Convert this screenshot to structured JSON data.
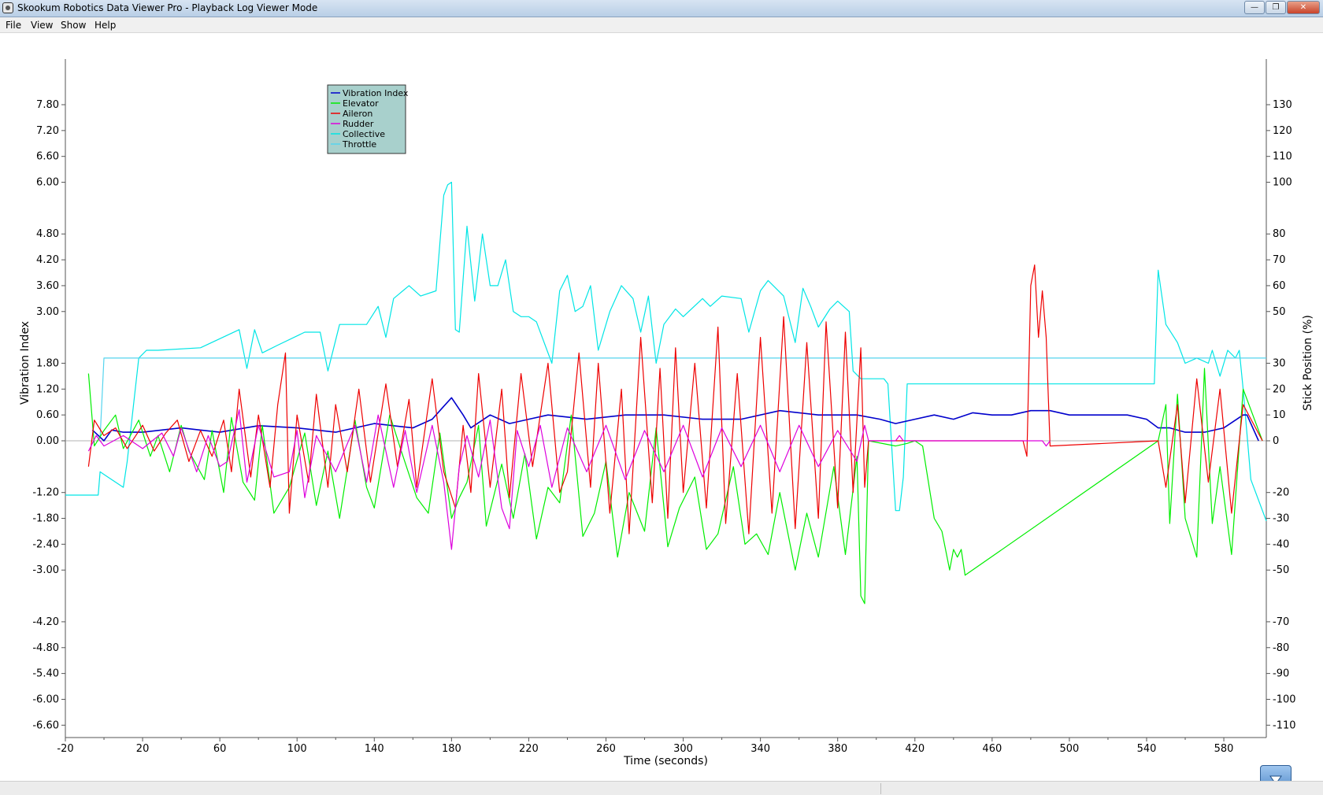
{
  "window": {
    "title": "Skookum Robotics Data Viewer Pro - Playback Log Viewer Mode",
    "buttons": [
      "minimize-icon",
      "maximize-icon",
      "close-icon"
    ]
  },
  "menu": {
    "items": [
      "File",
      "View",
      "Show",
      "Help"
    ]
  },
  "colors": {
    "vibration": "#0000cc",
    "elevator": "#00ee00",
    "aileron": "#ee0000",
    "rudder": "#dd00dd",
    "collective": "#00e5e5",
    "throttle": "#55d4ee",
    "legend_bg": "#a8d0cc",
    "axis": "#555555"
  },
  "chart_data": {
    "type": "line",
    "xlabel": "Time (seconds)",
    "ylabel": "Vibration Index",
    "y2label": "Stick Position (%)",
    "xlim": [
      -20,
      602
    ],
    "ylim": [
      -7.0,
      8.6
    ],
    "y2lim": [
      -116,
      143
    ],
    "x_ticks": [
      "-20",
      "20",
      "60",
      "100",
      "140",
      "180",
      "220",
      "260",
      "300",
      "340",
      "380",
      "420",
      "460",
      "500",
      "540",
      "580"
    ],
    "y_ticks": [
      "7.80",
      "7.20",
      "6.60",
      "6.00",
      "4.80",
      "4.20",
      "3.60",
      "3.00",
      "1.80",
      "1.20",
      "0.60",
      "0.00",
      "-1.20",
      "-1.80",
      "-2.40",
      "-3.00",
      "-4.20",
      "-4.80",
      "-5.40",
      "-6.00",
      "-6.60"
    ],
    "y2_ticks": [
      "130",
      "120",
      "110",
      "100",
      "80",
      "70",
      "60",
      "50",
      "30",
      "20",
      "10",
      "0",
      "-20",
      "-30",
      "-40",
      "-50",
      "-70",
      "-80",
      "-90",
      "-100",
      "-110"
    ],
    "legend": {
      "position": "top-left",
      "entries": [
        "Vibration Index",
        "Elevator",
        "Aileron",
        "Rudder",
        "Collective",
        "Throttle"
      ]
    },
    "grid": false,
    "series": [
      {
        "name": "Collective",
        "axis": "right",
        "x": [
          -20,
          -3,
          -2,
          0,
          10,
          12,
          18,
          22,
          28,
          50,
          70,
          74,
          78,
          82,
          90,
          104,
          112,
          116,
          122,
          136,
          142,
          146,
          150,
          158,
          164,
          172,
          176,
          178,
          180,
          182,
          184,
          188,
          192,
          196,
          200,
          204,
          208,
          212,
          216,
          220,
          224,
          232,
          236,
          240,
          244,
          248,
          252,
          256,
          262,
          268,
          274,
          278,
          282,
          286,
          290,
          296,
          300,
          310,
          314,
          320,
          330,
          334,
          340,
          344,
          352,
          358,
          362,
          366,
          370,
          376,
          380,
          386,
          388,
          392,
          404,
          406,
          410,
          412,
          414,
          416,
          418,
          420,
          544,
          546,
          550,
          556,
          560,
          566,
          572,
          574,
          578,
          582,
          586,
          588,
          590,
          594,
          602
        ],
        "y": [
          -21,
          -21,
          -12,
          -13,
          -18,
          -8,
          32,
          35,
          35,
          36,
          43,
          28,
          43,
          34,
          37,
          42,
          42,
          27,
          45,
          45,
          52,
          40,
          55,
          60,
          56,
          58,
          95,
          99,
          100,
          43,
          42,
          83,
          54,
          80,
          60,
          60,
          70,
          50,
          48,
          48,
          46,
          30,
          58,
          64,
          50,
          52,
          60,
          35,
          50,
          60,
          55,
          42,
          56,
          30,
          45,
          51,
          48,
          55,
          52,
          56,
          55,
          42,
          58,
          62,
          56,
          38,
          59,
          52,
          44,
          51,
          54,
          50,
          27,
          24,
          24,
          22,
          -27,
          -27,
          -14,
          22,
          22,
          22,
          22,
          66,
          45,
          38,
          30,
          32,
          30,
          35,
          25,
          35,
          32,
          35,
          20,
          -15,
          -31
        ]
      },
      {
        "name": "Throttle",
        "axis": "right",
        "x": [
          -3,
          -2,
          0,
          5,
          300,
          340,
          380,
          420,
          430,
          460,
          470,
          500,
          512,
          514,
          520,
          540,
          544,
          550,
          560,
          568,
          572,
          580,
          590,
          602
        ],
        "y": [
          1,
          1,
          32,
          32,
          32,
          32,
          32,
          32,
          32,
          32,
          32,
          32,
          32,
          32,
          32,
          32,
          32,
          32,
          32,
          32,
          32,
          32,
          32,
          32
        ]
      },
      {
        "name": "Vibration Index",
        "axis": "left",
        "x": [
          -6,
          0,
          4,
          10,
          20,
          40,
          60,
          80,
          100,
          120,
          140,
          160,
          170,
          176,
          180,
          186,
          190,
          200,
          210,
          220,
          230,
          250,
          270,
          290,
          310,
          330,
          350,
          370,
          390,
          402,
          410,
          420,
          430,
          440,
          450,
          460,
          470,
          480,
          490,
          500,
          510,
          520,
          530,
          540,
          546,
          552,
          560,
          570,
          580,
          590,
          592,
          598
        ],
        "y": [
          0.25,
          0.0,
          0.25,
          0.2,
          0.2,
          0.3,
          0.2,
          0.35,
          0.3,
          0.2,
          0.4,
          0.3,
          0.5,
          0.8,
          1.0,
          0.6,
          0.3,
          0.6,
          0.4,
          0.5,
          0.6,
          0.5,
          0.6,
          0.6,
          0.5,
          0.5,
          0.7,
          0.6,
          0.6,
          0.5,
          0.4,
          0.5,
          0.6,
          0.5,
          0.65,
          0.6,
          0.6,
          0.7,
          0.7,
          0.6,
          0.6,
          0.6,
          0.6,
          0.5,
          0.3,
          0.3,
          0.2,
          0.2,
          0.3,
          0.6,
          0.6,
          0.0
        ]
      },
      {
        "name": "Elevator",
        "axis": "right",
        "x": [
          -8,
          -5,
          0,
          6,
          10,
          18,
          24,
          28,
          34,
          40,
          44,
          52,
          56,
          62,
          66,
          72,
          78,
          82,
          88,
          96,
          104,
          110,
          116,
          122,
          130,
          136,
          140,
          148,
          154,
          162,
          168,
          174,
          180,
          184,
          188,
          194,
          198,
          206,
          212,
          218,
          224,
          230,
          236,
          242,
          248,
          254,
          260,
          266,
          272,
          280,
          286,
          292,
          298,
          306,
          312,
          318,
          326,
          332,
          338,
          344,
          350,
          358,
          364,
          370,
          378,
          384,
          390,
          392,
          394,
          396,
          410,
          416,
          420,
          424,
          430,
          434,
          438,
          440,
          442,
          444,
          446,
          546,
          550,
          552,
          556,
          560,
          566,
          570,
          574,
          578,
          584,
          590,
          600
        ],
        "y": [
          26,
          -2,
          4,
          10,
          -3,
          8,
          -6,
          2,
          -12,
          6,
          -4,
          -15,
          4,
          -20,
          9,
          -16,
          -23,
          6,
          -28,
          -18,
          3,
          -25,
          -4,
          -30,
          8,
          -18,
          -26,
          10,
          -4,
          -22,
          -28,
          3,
          -30,
          -22,
          -16,
          6,
          -33,
          -9,
          -30,
          -5,
          -38,
          -18,
          -24,
          10,
          -37,
          -28,
          -8,
          -45,
          -20,
          -35,
          5,
          -41,
          -26,
          -14,
          -42,
          -36,
          -10,
          -40,
          -36,
          -44,
          -20,
          -50,
          -28,
          -45,
          -10,
          -44,
          -6,
          -60,
          -63,
          0,
          -2,
          -1,
          0,
          -2,
          -30,
          -35,
          -50,
          -42,
          -45,
          -42,
          -52,
          0,
          14,
          -32,
          18,
          -30,
          -45,
          28,
          -32,
          -10,
          -44,
          20,
          0
        ]
      },
      {
        "name": "Aileron",
        "axis": "right",
        "x": [
          -8,
          -5,
          0,
          6,
          12,
          20,
          26,
          32,
          38,
          44,
          50,
          56,
          62,
          66,
          70,
          76,
          80,
          86,
          90,
          94,
          96,
          100,
          106,
          110,
          116,
          120,
          126,
          132,
          138,
          146,
          152,
          158,
          162,
          170,
          176,
          182,
          186,
          190,
          194,
          200,
          206,
          210,
          216,
          222,
          230,
          236,
          240,
          246,
          252,
          256,
          262,
          268,
          272,
          278,
          284,
          288,
          292,
          296,
          300,
          306,
          312,
          318,
          322,
          328,
          334,
          340,
          346,
          352,
          358,
          364,
          370,
          374,
          380,
          384,
          388,
          392,
          394,
          396,
          476,
          478,
          480,
          482,
          484,
          486,
          488,
          490,
          546,
          550,
          556,
          560,
          566,
          572,
          578,
          584,
          590,
          600
        ],
        "y": [
          -10,
          8,
          2,
          5,
          -3,
          6,
          -4,
          3,
          8,
          -8,
          4,
          -6,
          8,
          -12,
          20,
          -14,
          10,
          -18,
          14,
          34,
          -28,
          10,
          -16,
          18,
          -18,
          14,
          -12,
          20,
          -16,
          22,
          -10,
          16,
          -18,
          24,
          -12,
          -26,
          6,
          -20,
          26,
          -18,
          20,
          -22,
          26,
          -10,
          30,
          -20,
          -12,
          34,
          -18,
          30,
          -28,
          20,
          -36,
          40,
          -24,
          28,
          -30,
          36,
          -20,
          30,
          -26,
          44,
          -32,
          26,
          -36,
          40,
          -28,
          48,
          -34,
          38,
          -30,
          46,
          -26,
          42,
          -20,
          36,
          -18,
          0,
          0,
          -6,
          60,
          68,
          40,
          58,
          40,
          -2,
          0,
          -18,
          14,
          -24,
          24,
          -16,
          20,
          -28,
          14,
          0
        ]
      },
      {
        "name": "Rudder",
        "axis": "right",
        "x": [
          -8,
          -4,
          0,
          10,
          20,
          30,
          36,
          40,
          48,
          54,
          60,
          64,
          70,
          74,
          80,
          88,
          96,
          100,
          104,
          110,
          120,
          130,
          136,
          142,
          150,
          156,
          162,
          170,
          176,
          180,
          184,
          188,
          194,
          200,
          206,
          210,
          214,
          220,
          226,
          232,
          240,
          250,
          260,
          270,
          280,
          290,
          300,
          310,
          320,
          330,
          340,
          350,
          360,
          370,
          380,
          390,
          394,
          396,
          410,
          412,
          414,
          480,
          486,
          488,
          490
        ],
        "y": [
          -4,
          2,
          -2,
          2,
          -3,
          3,
          -6,
          5,
          -12,
          2,
          -10,
          -8,
          12,
          -16,
          6,
          -14,
          -12,
          4,
          -22,
          2,
          -12,
          6,
          -16,
          10,
          -18,
          4,
          -20,
          6,
          -16,
          -42,
          -10,
          2,
          -14,
          8,
          -26,
          -34,
          4,
          -10,
          6,
          -18,
          5,
          -12,
          6,
          -15,
          4,
          -12,
          6,
          -14,
          5,
          -10,
          6,
          -12,
          6,
          -10,
          4,
          -8,
          6,
          0,
          0,
          2,
          0,
          0,
          0,
          -2,
          0
        ]
      }
    ]
  }
}
